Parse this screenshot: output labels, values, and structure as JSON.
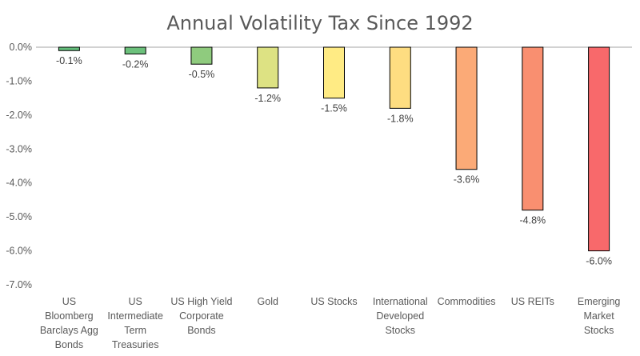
{
  "chart_data": {
    "type": "bar",
    "title": "Annual Volatility Tax Since 1992",
    "xlabel": "",
    "ylabel": "",
    "ylim": [
      -7.0,
      0.0
    ],
    "yticks": [
      "0.0%",
      "-1.0%",
      "-2.0%",
      "-3.0%",
      "-4.0%",
      "-5.0%",
      "-6.0%",
      "-7.0%"
    ],
    "ytick_values": [
      0,
      -1,
      -2,
      -3,
      -4,
      -5,
      -6,
      -7
    ],
    "grid": false,
    "legend": "none",
    "categories": [
      [
        "US",
        "Bloomberg",
        "Barclays Agg",
        "Bonds"
      ],
      [
        "US",
        "Intermediate",
        "Term",
        "Treasuries"
      ],
      [
        "US High Yield",
        "Corporate",
        "Bonds"
      ],
      [
        "Gold"
      ],
      [
        "US Stocks"
      ],
      [
        "International",
        "Developed",
        "Stocks"
      ],
      [
        "Commodities"
      ],
      [
        "US REITs"
      ],
      [
        "Emerging",
        "Market",
        "Stocks"
      ]
    ],
    "values": [
      -0.1,
      -0.2,
      -0.5,
      -1.2,
      -1.5,
      -1.8,
      -3.6,
      -4.8,
      -6.0
    ],
    "data_labels": [
      "-0.1%",
      "-0.2%",
      "-0.5%",
      "-1.2%",
      "-1.5%",
      "-1.8%",
      "-3.6%",
      "-4.8%",
      "-6.0%"
    ],
    "colors": [
      "#63be7b",
      "#6cc17c",
      "#8fcb7e",
      "#dde283",
      "#ffeb84",
      "#fedd81",
      "#fbaa77",
      "#f98f70",
      "#f8696b"
    ]
  }
}
